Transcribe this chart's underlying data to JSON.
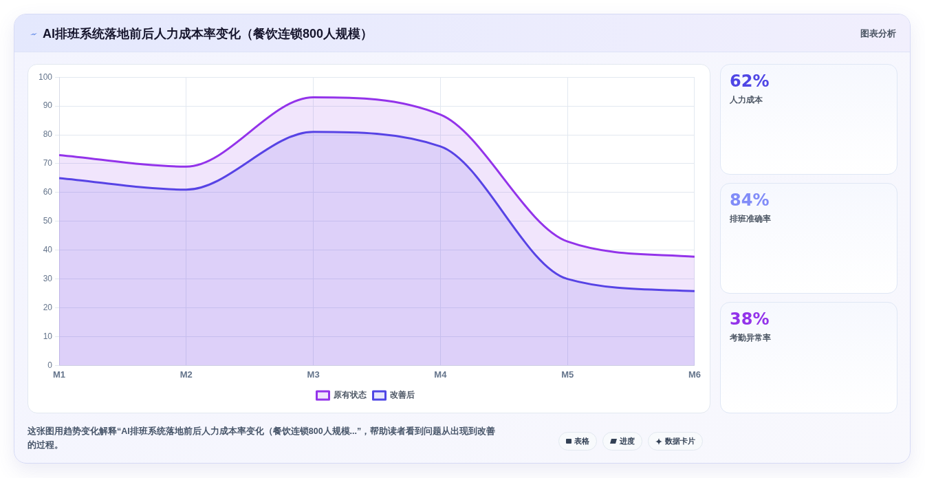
{
  "chart_data": [
    {
      "type": "area",
      "title": "AI排班系统落地前后人力成本率变化（餐饮连锁800人规模）",
      "categories": [
        "M1",
        "M2",
        "M3",
        "M4",
        "M5",
        "M6"
      ],
      "series": [
        {
          "name": "原有状态",
          "color": "#9333ea",
          "values": [
            73,
            69,
            93,
            87,
            43,
            37.7
          ]
        },
        {
          "name": "改善后",
          "color": "#4f46e5",
          "values": [
            65,
            61,
            81,
            76,
            30,
            25.8
          ]
        }
      ],
      "ylim": [
        0,
        100
      ],
      "yticks": [
        0,
        10,
        20,
        30,
        40,
        50,
        60,
        70,
        80,
        90,
        100
      ],
      "grid": true,
      "legend": "bottom",
      "annotations": [
        "图表分析",
        "这张图用趋势变化解释“AI排班系统落地前后人力成本率变化（餐饮连锁800人规模...”，帮助读者看到问题从出现到改善的过程。",
        "表格",
        "进度",
        "数据卡片"
      ]
    },
    {
      "type": "other",
      "categories": [
        "人力成本",
        "排班准确率",
        "考勤异常率"
      ],
      "value_labels": [
        "62%",
        "84%",
        "38%"
      ]
    }
  ]
}
